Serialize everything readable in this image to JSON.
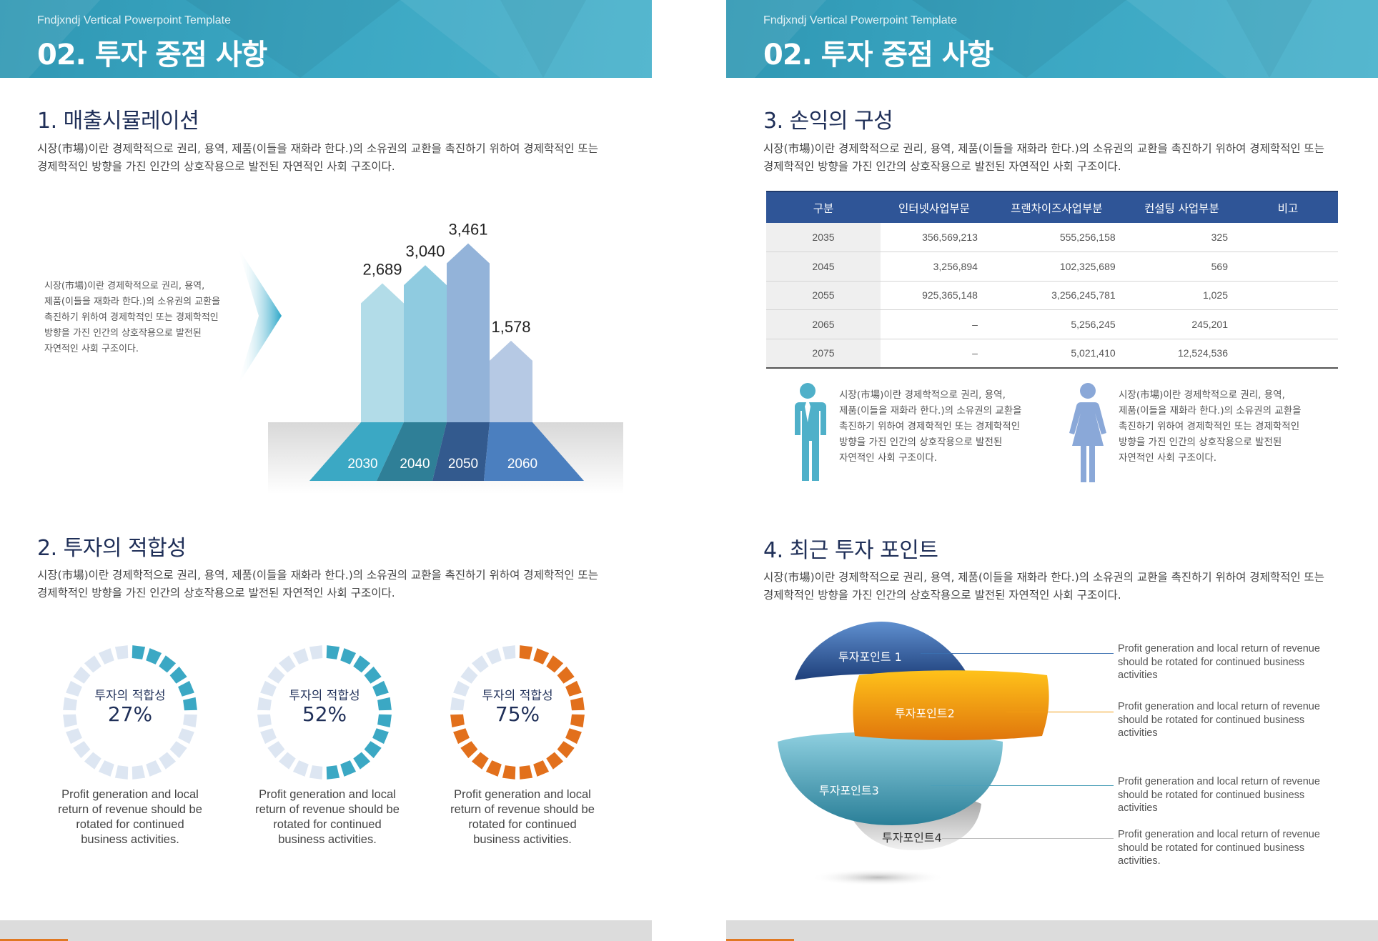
{
  "brand": "Fndjxndj Vertical Powerpoint Template",
  "page_title": "02. 투자 중점 사항",
  "body_text": "시장(市場)이란 경제학적으로 권리, 용역, 제품(이들을 재화라 한다.)의 소유권의 교환을 촉진하기 위하여 경제학적인 또는 경제학적인 방향을 가진 인간의 상호작용으로 발전된 자연적인 사회 구조이다.",
  "body_line1": "시장(市場)이란 경제학적으로 권리, 용역, 제품(이들을 재화라 한다.)의 소유권의 교환을 촉진하기 위하여 경제학적인 또는",
  "body_line2": "경제학적인 방향을 가진 인간의 상호작용으로 발전된 자연적인 사회 구조이다.",
  "side_lines": [
    "시장(市場)이란 경제학적으로 권리, 용역,",
    "제품(이들을 재화라 한다.)의 소유권의 교환을",
    "촉진하기 위하여 경제학적인 또는 경제학적인",
    "방향을 가진 인간의 상호작용으로 발전된",
    "자연적인 사회 구조이다."
  ],
  "sections": {
    "s1": "1. 매출시뮬레이션",
    "s2": "2. 투자의 적합성",
    "s3": "3. 손익의 구성",
    "s4": "4. 최근 투자 포인트"
  },
  "chart_data": {
    "type": "bar",
    "categories": [
      "2030",
      "2040",
      "2050",
      "2060"
    ],
    "values": [
      2689,
      3040,
      3461,
      1578
    ],
    "value_labels": [
      "2,689",
      "3,040",
      "3,461",
      "1,578"
    ],
    "colors": [
      "#b2dce8",
      "#8fcbe0",
      "#93b3d9",
      "#b6c9e4"
    ],
    "base_colors": [
      "#3ba8c4",
      "#2f7f97",
      "#335a8e",
      "#4b7fbf"
    ],
    "ylim": [
      0,
      3600
    ]
  },
  "rings": [
    {
      "label": "투자의 적합성",
      "value": "27%",
      "percent": 27,
      "color": "#3ba8c4"
    },
    {
      "label": "투자의 적합성",
      "value": "52%",
      "percent": 52,
      "color": "#3ba8c4"
    },
    {
      "label": "투자의 적합성",
      "value": "75%",
      "percent": 75,
      "color": "#e2701c"
    }
  ],
  "ring_desc_lines": [
    "Profit generation and local",
    "return of revenue should be",
    "rotated for continued",
    "business activities."
  ],
  "table": {
    "headers": [
      "구분",
      "인터넷사업부문",
      "프랜차이즈사업부분",
      "컨설팅 사업부분",
      "비고"
    ],
    "rows": [
      [
        "2035",
        "356,569,213",
        "555,256,158",
        "325",
        ""
      ],
      [
        "2045",
        "3,256,894",
        "102,325,689",
        "569",
        ""
      ],
      [
        "2055",
        "925,365,148",
        "3,256,245,781",
        "1,025",
        ""
      ],
      [
        "2065",
        "–",
        "5,256,245",
        "245,201",
        ""
      ],
      [
        "2075",
        "–",
        "5,021,410",
        "12,524,536",
        ""
      ]
    ]
  },
  "points": [
    {
      "label": "투자포인트 1",
      "color": "#3a6fb0"
    },
    {
      "label": "투자포인트2",
      "color": "#f29c11"
    },
    {
      "label": "투자포인트3",
      "color": "#4da0b8"
    },
    {
      "label": "투자포인트4",
      "color": "#bdbdbd"
    }
  ],
  "point_desc_lines": [
    "Profit generation and local return of revenue",
    "should be rotated for continued business",
    "activities"
  ],
  "point_desc_lines_last": [
    "Profit generation and local return of revenue",
    "should be rotated for continued business",
    "activities."
  ]
}
